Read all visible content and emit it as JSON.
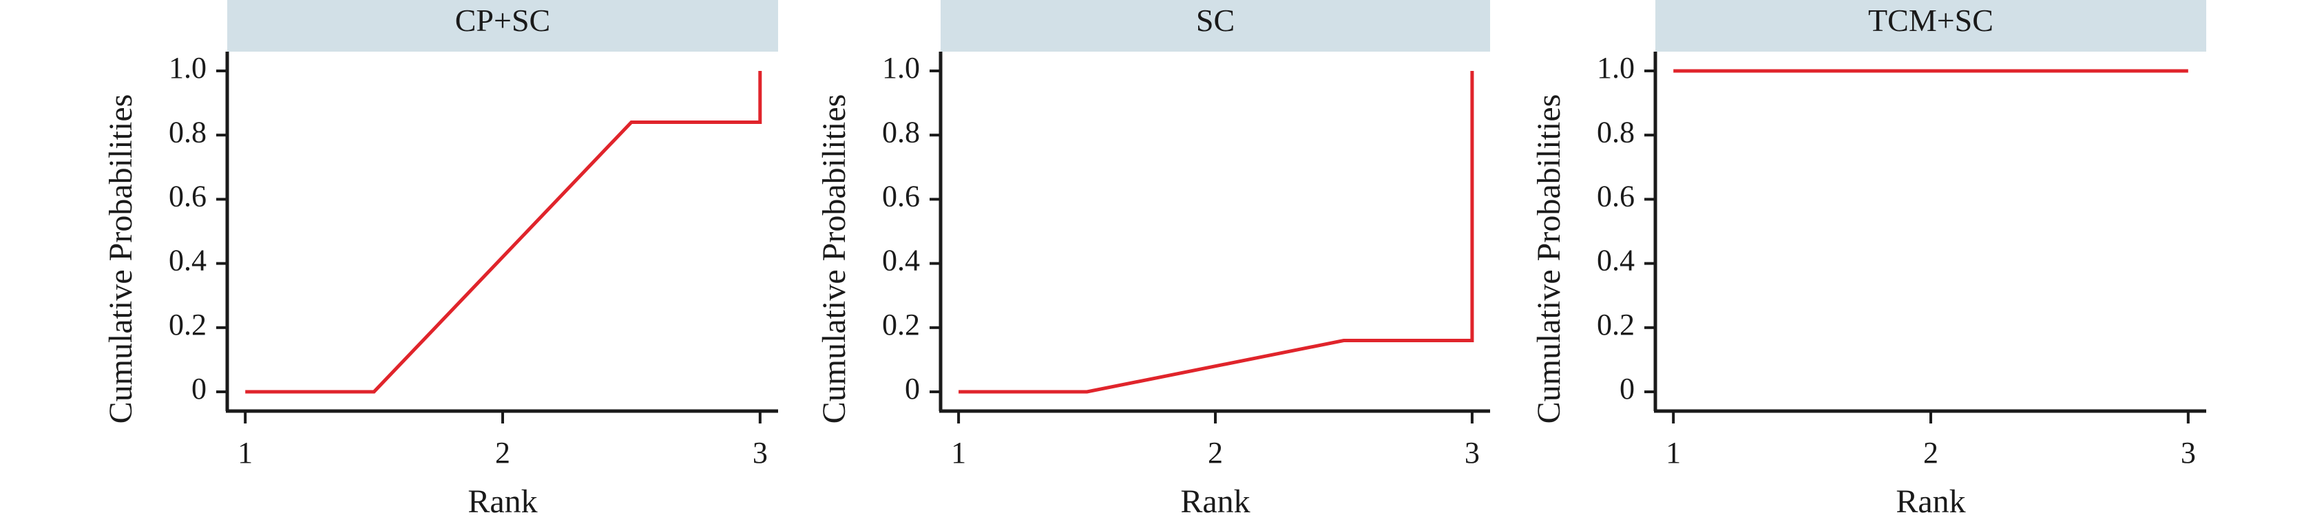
{
  "chart_data": [
    {
      "type": "line",
      "title": "CP+SC",
      "xlabel": "Rank",
      "ylabel": "Cumulative Probabilities",
      "x_ticks": [
        "1",
        "2",
        "3"
      ],
      "y_ticks": [
        "0",
        "0.2",
        "0.4",
        "0.6",
        "0.8",
        "1.0"
      ],
      "xlim": [
        0.93,
        3.07
      ],
      "ylim": [
        -0.06,
        1.06
      ],
      "series": [
        {
          "x": [
            1,
            1.5,
            2.5,
            3,
            3
          ],
          "y": [
            0,
            0,
            0.84,
            0.84,
            1.0
          ]
        }
      ]
    },
    {
      "type": "line",
      "title": "SC",
      "xlabel": "Rank",
      "ylabel": "Cumulative Probabilities",
      "x_ticks": [
        "1",
        "2",
        "3"
      ],
      "y_ticks": [
        "0",
        "0.2",
        "0.4",
        "0.6",
        "0.8",
        "1.0"
      ],
      "xlim": [
        0.93,
        3.07
      ],
      "ylim": [
        -0.06,
        1.06
      ],
      "series": [
        {
          "x": [
            1,
            1.5,
            2.5,
            3,
            3
          ],
          "y": [
            0,
            0,
            0.16,
            0.16,
            1.0
          ]
        }
      ]
    },
    {
      "type": "line",
      "title": "TCM+SC",
      "xlabel": "Rank",
      "ylabel": "Cumulative Probabilities",
      "x_ticks": [
        "1",
        "2",
        "3"
      ],
      "y_ticks": [
        "0",
        "0.2",
        "0.4",
        "0.6",
        "0.8",
        "1.0"
      ],
      "xlim": [
        0.93,
        3.07
      ],
      "ylim": [
        -0.06,
        1.06
      ],
      "series": [
        {
          "x": [
            1,
            3
          ],
          "y": [
            1.0,
            1.0
          ]
        }
      ]
    }
  ],
  "colors": {
    "line": "#e0242b",
    "strip": "#d2e0e7",
    "axis": "#1a1a1a"
  }
}
